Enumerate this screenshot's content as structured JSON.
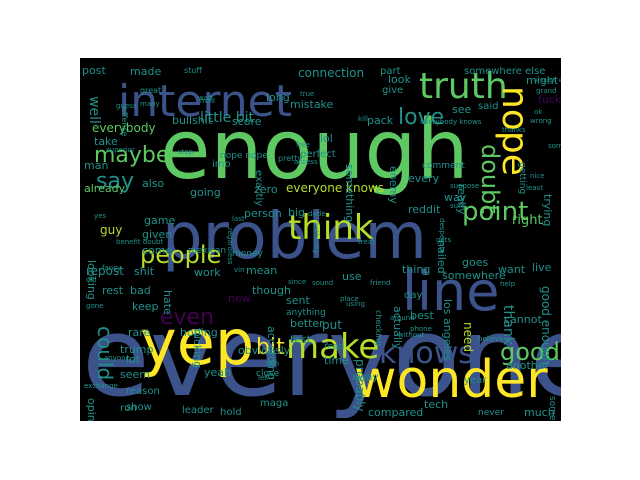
{
  "palette": {
    "yellow": "#fde725",
    "lime": "#b5de2b",
    "green": "#5ec962",
    "teal": "#21918c",
    "blue": "#3b528b",
    "purple": "#440154",
    "cyan": "#2cb7a0"
  },
  "words": [
    {
      "text": "everyone",
      "color": "blue"
    },
    {
      "text": "enough",
      "color": "green"
    },
    {
      "text": "problem",
      "color": "blue"
    },
    {
      "text": "yep",
      "color": "yellow"
    },
    {
      "text": "wonder",
      "color": "yellow"
    },
    {
      "text": "line",
      "color": "blue"
    },
    {
      "text": "internet",
      "color": "blue"
    },
    {
      "text": "truth",
      "color": "green"
    },
    {
      "text": "think",
      "color": "lime"
    },
    {
      "text": "make",
      "color": "lime"
    },
    {
      "text": "knows",
      "color": "blue"
    },
    {
      "text": "people",
      "color": "lime"
    },
    {
      "text": "point",
      "color": "green"
    },
    {
      "text": "nope",
      "color": "yellow"
    },
    {
      "text": "maybe",
      "color": "green"
    },
    {
      "text": "say",
      "color": "teal"
    },
    {
      "text": "love",
      "color": "teal"
    },
    {
      "text": "doubt",
      "color": "green"
    },
    {
      "text": "could",
      "color": "teal"
    },
    {
      "text": "good",
      "color": "green"
    },
    {
      "text": "even",
      "color": "purple"
    },
    {
      "text": "bit",
      "color": "yellow"
    },
    {
      "text": "little bit",
      "color": "teal"
    },
    {
      "text": "everybody",
      "color": "green"
    },
    {
      "text": "connection",
      "color": "teal"
    },
    {
      "text": "everyone knows",
      "color": "lime"
    },
    {
      "text": "good enough",
      "color": "teal"
    },
    {
      "text": "bullshit",
      "color": "teal"
    },
    {
      "text": "score",
      "color": "teal"
    },
    {
      "text": "mistake",
      "color": "teal"
    },
    {
      "text": "made",
      "color": "teal"
    },
    {
      "text": "post",
      "color": "teal"
    },
    {
      "text": "well",
      "color": "teal"
    },
    {
      "text": "look",
      "color": "teal"
    },
    {
      "text": "see",
      "color": "teal"
    },
    {
      "text": "also",
      "color": "teal"
    },
    {
      "text": "already",
      "color": "green"
    },
    {
      "text": "zero",
      "color": "teal"
    },
    {
      "text": "going",
      "color": "teal"
    },
    {
      "text": "game",
      "color": "teal"
    },
    {
      "text": "repost",
      "color": "teal"
    },
    {
      "text": "shit",
      "color": "teal"
    },
    {
      "text": "work",
      "color": "teal"
    },
    {
      "text": "mean",
      "color": "teal"
    },
    {
      "text": "sent",
      "color": "teal"
    },
    {
      "text": "better",
      "color": "teal"
    },
    {
      "text": "test",
      "color": "teal"
    },
    {
      "text": "put",
      "color": "teal"
    },
    {
      "text": "probably",
      "color": "teal"
    },
    {
      "text": "somewhere",
      "color": "teal"
    },
    {
      "text": "want",
      "color": "teal"
    },
    {
      "text": "right",
      "color": "green"
    },
    {
      "text": "trying",
      "color": "teal"
    },
    {
      "text": "live",
      "color": "teal"
    },
    {
      "text": "cannot",
      "color": "teal"
    },
    {
      "text": "thank",
      "color": "teal"
    },
    {
      "text": "need",
      "color": "lime"
    },
    {
      "text": "los angeles",
      "color": "teal"
    },
    {
      "text": "goes",
      "color": "teal"
    },
    {
      "text": "best",
      "color": "teal"
    },
    {
      "text": "rest",
      "color": "teal"
    },
    {
      "text": "bad",
      "color": "teal"
    },
    {
      "text": "keep",
      "color": "teal"
    },
    {
      "text": "rare",
      "color": "teal"
    },
    {
      "text": "trump",
      "color": "teal"
    },
    {
      "text": "hoping",
      "color": "teal"
    },
    {
      "text": "obviously",
      "color": "teal"
    },
    {
      "text": "opinion",
      "color": "teal"
    },
    {
      "text": "seem",
      "color": "teal"
    },
    {
      "text": "yeah",
      "color": "teal"
    },
    {
      "text": "tech",
      "color": "teal"
    },
    {
      "text": "compared",
      "color": "teal"
    },
    {
      "text": "much",
      "color": "teal"
    },
    {
      "text": "another",
      "color": "teal"
    },
    {
      "text": "time",
      "color": "teal"
    },
    {
      "text": "lot",
      "color": "teal"
    },
    {
      "text": "fucking",
      "color": "teal"
    },
    {
      "text": "new",
      "color": "purple"
    },
    {
      "text": "anything",
      "color": "teal"
    },
    {
      "text": "according",
      "color": "teal"
    },
    {
      "text": "guy",
      "color": "lime"
    },
    {
      "text": "looking",
      "color": "teal"
    },
    {
      "text": "given",
      "color": "teal"
    },
    {
      "text": "come",
      "color": "teal"
    },
    {
      "text": "hate",
      "color": "teal"
    },
    {
      "text": "though",
      "color": "teal"
    },
    {
      "text": "use",
      "color": "teal"
    },
    {
      "text": "actually",
      "color": "teal"
    },
    {
      "text": "thing",
      "color": "teal"
    },
    {
      "text": "person",
      "color": "teal"
    },
    {
      "text": "big",
      "color": "teal"
    },
    {
      "text": "lol",
      "color": "teal"
    },
    {
      "text": "something",
      "color": "teal"
    },
    {
      "text": "enemy",
      "color": "teal"
    },
    {
      "text": "every",
      "color": "teal"
    },
    {
      "text": "way",
      "color": "teal"
    },
    {
      "text": "really",
      "color": "teal"
    },
    {
      "text": "reddit",
      "color": "teal"
    },
    {
      "text": "nailed",
      "color": "teal"
    },
    {
      "text": "getting",
      "color": "teal"
    },
    {
      "text": "take",
      "color": "teal"
    },
    {
      "text": "man",
      "color": "teal"
    },
    {
      "text": "long",
      "color": "teal"
    },
    {
      "text": "perfect",
      "color": "teal"
    },
    {
      "text": "exactly",
      "color": "teal"
    },
    {
      "text": "pack",
      "color": "teal"
    },
    {
      "text": "comment",
      "color": "teal"
    },
    {
      "text": "part",
      "color": "teal"
    },
    {
      "text": "give",
      "color": "teal"
    },
    {
      "text": "said",
      "color": "teal"
    },
    {
      "text": "somewhere else",
      "color": "teal"
    },
    {
      "text": "might",
      "color": "teal"
    },
    {
      "text": "fuck",
      "color": "purple"
    },
    {
      "text": "stuff",
      "color": "teal"
    },
    {
      "text": "great",
      "color": "teal"
    },
    {
      "text": "offense",
      "color": "teal"
    },
    {
      "text": "nope nope",
      "color": "teal"
    },
    {
      "text": "imo",
      "color": "teal"
    },
    {
      "text": "maga",
      "color": "teal"
    },
    {
      "text": "leader",
      "color": "teal"
    },
    {
      "text": "hold",
      "color": "teal"
    },
    {
      "text": "reason",
      "color": "teal"
    },
    {
      "text": "show",
      "color": "teal"
    },
    {
      "text": "mexican",
      "color": "teal"
    },
    {
      "text": "money",
      "color": "teal"
    },
    {
      "text": "never",
      "color": "teal"
    },
    {
      "text": "someone",
      "color": "teal"
    },
    {
      "text": "year",
      "color": "teal"
    },
    {
      "text": "day",
      "color": "teal"
    },
    {
      "text": "away",
      "color": "teal"
    },
    {
      "text": "read",
      "color": "teal"
    },
    {
      "text": "close",
      "color": "teal"
    },
    {
      "text": "run",
      "color": "teal"
    },
    {
      "text": "everybody knows",
      "color": "teal"
    },
    {
      "text": "pretty",
      "color": "teal"
    },
    {
      "text": "free",
      "color": "teal"
    },
    {
      "text": "access",
      "color": "teal"
    },
    {
      "text": "last",
      "color": "teal"
    },
    {
      "text": "benefit doubt",
      "color": "teal"
    },
    {
      "text": "help",
      "color": "teal"
    },
    {
      "text": "since",
      "color": "teal"
    },
    {
      "text": "sound",
      "color": "teal"
    },
    {
      "text": "friend",
      "color": "teal"
    },
    {
      "text": "around",
      "color": "teal"
    },
    {
      "text": "believe",
      "color": "teal"
    },
    {
      "text": "checking",
      "color": "teal"
    },
    {
      "text": "fancy",
      "color": "teal"
    },
    {
      "text": "exchange",
      "color": "teal"
    },
    {
      "text": "stop",
      "color": "teal"
    },
    {
      "text": "desperate",
      "color": "teal"
    },
    {
      "text": "kill",
      "color": "teal"
    },
    {
      "text": "mail",
      "color": "teal"
    },
    {
      "text": "dude",
      "color": "teal"
    },
    {
      "text": "authority",
      "color": "teal"
    },
    {
      "text": "grand",
      "color": "teal"
    },
    {
      "text": "wrong",
      "color": "teal"
    },
    {
      "text": "guess",
      "color": "teal"
    },
    {
      "text": "anyone",
      "color": "teal"
    },
    {
      "text": "place",
      "color": "teal"
    },
    {
      "text": "using",
      "color": "teal"
    },
    {
      "text": "treat",
      "color": "teal"
    },
    {
      "text": "least",
      "color": "teal"
    },
    {
      "text": "nice",
      "color": "teal"
    },
    {
      "text": "gets",
      "color": "teal"
    },
    {
      "text": "phone",
      "color": "teal"
    },
    {
      "text": "without",
      "color": "teal"
    },
    {
      "text": "many",
      "color": "teal"
    },
    {
      "text": "true",
      "color": "teal"
    },
    {
      "text": "superior",
      "color": "teal"
    },
    {
      "text": "suppose",
      "color": "teal"
    },
    {
      "text": "regardless",
      "color": "teal"
    },
    {
      "text": "vin",
      "color": "teal"
    },
    {
      "text": "yes",
      "color": "teal"
    },
    {
      "text": "old",
      "color": "teal"
    },
    {
      "text": "gone",
      "color": "teal"
    },
    {
      "text": "enough enough",
      "color": "teal"
    },
    {
      "text": "ok",
      "color": "teal"
    },
    {
      "text": "min",
      "color": "teal"
    },
    {
      "text": "let",
      "color": "teal"
    },
    {
      "text": "thanks",
      "color": "teal"
    },
    {
      "text": "wait",
      "color": "teal"
    },
    {
      "text": "sure",
      "color": "teal"
    },
    {
      "text": "sorry",
      "color": "teal"
    }
  ]
}
